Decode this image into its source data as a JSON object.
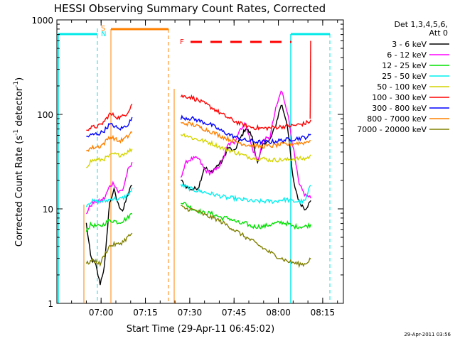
{
  "chart_data": {
    "type": "line",
    "title": "HESSI Observing Summary Count Rates, Corrected",
    "xlabel": "Start Time (29-Apr-11 06:45:02)",
    "ylabel": "Corrected Count Rate (s⁻¹ detector⁻¹)",
    "ylabel_main": "Corrected Count Rate (s",
    "ylabel_mid": " detector",
    "ylabel_end": ")",
    "ylabel_exp": "-1",
    "y_scale": "log",
    "ylim": [
      1,
      1000
    ],
    "xlim": [
      "06:45:02",
      "08:22:00"
    ],
    "x_ticks": [
      "07:00",
      "07:15",
      "07:30",
      "07:45",
      "08:00",
      "08:15"
    ],
    "y_ticks": [
      "1",
      "10",
      "100",
      "1000"
    ],
    "legend_header": [
      "Det 1,3,4,5,6,",
      "Att 0"
    ],
    "legend_position": "right",
    "timestamp": "29-Apr-2011 03:56",
    "markers": {
      "s_label": "S",
      "n_label": "N",
      "f_label": "F"
    },
    "segments": [
      {
        "start": "06:55:00",
        "end": "07:10:30"
      },
      {
        "start": "07:27:00",
        "end": "08:11:00"
      }
    ],
    "series": [
      {
        "name": "3 - 6 keV",
        "color": "#000000",
        "values": [
          [
            7.0,
            3.0,
            2.6,
            1.6,
            2.5,
            11,
            16,
            11,
            9.5,
            14,
            18
          ],
          [
            20,
            17,
            16,
            17,
            28,
            24,
            28,
            32,
            45,
            40,
            55,
            72,
            60,
            30,
            50,
            52,
            75,
            130,
            80,
            20,
            12,
            10,
            12
          ]
        ]
      },
      {
        "name": "6 - 12 keV",
        "color": "#ff00ff",
        "values": [
          [
            9.0,
            11,
            12,
            12,
            13,
            17,
            19,
            15,
            16,
            25,
            30
          ],
          [
            22,
            32,
            34,
            34,
            26,
            24,
            26,
            32,
            48,
            50,
            70,
            80,
            45,
            32,
            55,
            55,
            110,
            180,
            110,
            45,
            18,
            14,
            13
          ]
        ]
      },
      {
        "name": "12 - 25 keV",
        "color": "#00e000",
        "values": [
          [
            6.0,
            6.8,
            6.6,
            6.5,
            7.0,
            7.5,
            7.5,
            7.2,
            7.5,
            8.0,
            9.0
          ],
          [
            12,
            11,
            10,
            9.5,
            9.0,
            9.0,
            8.5,
            8.0,
            8.0,
            7.5,
            7.0,
            7.0,
            6.5,
            6.5,
            6.5,
            6.8,
            7.0,
            7.2,
            7.0,
            6.5,
            6.5,
            6.5,
            6.8
          ]
        ]
      },
      {
        "name": "25 - 50 keV",
        "color": "#00f0f0",
        "values": [
          [
            11,
            12,
            12,
            12,
            12,
            12.5,
            13,
            12.5,
            13,
            14,
            16
          ],
          [
            18,
            17,
            16,
            15.5,
            15,
            14.5,
            14,
            13.5,
            13,
            13,
            12.5,
            12.5,
            12,
            12,
            12,
            12,
            12,
            12.5,
            12.5,
            12,
            12,
            12,
            18
          ]
        ]
      },
      {
        "name": "50 - 100 keV",
        "color": "#d4d400",
        "values": [
          [
            28,
            32,
            33,
            33,
            34,
            36,
            38,
            37,
            38,
            40,
            43
          ],
          [
            62,
            60,
            56,
            54,
            52,
            50,
            47,
            44,
            42,
            40,
            38,
            36,
            35,
            34,
            34,
            33,
            33,
            33,
            33,
            34,
            34,
            34,
            36
          ]
        ]
      },
      {
        "name": "100 - 300 keV",
        "color": "#ff0000",
        "values": [
          [
            70,
            72,
            74,
            76,
            85,
            100,
            98,
            92,
            95,
            105,
            130
          ],
          [
            155,
            155,
            150,
            140,
            130,
            120,
            110,
            100,
            92,
            85,
            80,
            76,
            73,
            72,
            71,
            72,
            73,
            74,
            75,
            76,
            78,
            80,
            85
          ]
        ]
      },
      {
        "name": "300 - 800 keV",
        "color": "#0000ff",
        "values": [
          [
            58,
            60,
            62,
            63,
            68,
            78,
            76,
            70,
            72,
            78,
            90
          ],
          [
            92,
            92,
            90,
            86,
            82,
            78,
            72,
            66,
            62,
            58,
            55,
            53,
            52,
            51,
            51,
            51,
            52,
            53,
            54,
            55,
            56,
            57,
            60
          ]
        ]
      },
      {
        "name": "800 - 7000 keV",
        "color": "#ff8000",
        "values": [
          [
            42,
            44,
            45,
            46,
            50,
            58,
            56,
            52,
            54,
            58,
            66
          ],
          [
            80,
            80,
            78,
            74,
            70,
            66,
            62,
            58,
            55,
            52,
            50,
            48,
            47,
            46,
            46,
            46,
            47,
            48,
            48,
            49,
            50,
            50,
            54
          ]
        ]
      },
      {
        "name": "7000 - 20000 keV",
        "color": "#808000",
        "values": [
          [
            2.6,
            2.8,
            2.8,
            2.6,
            3.3,
            4.0,
            4.2,
            4.2,
            4.5,
            5.0,
            5.5
          ],
          [
            10.5,
            10,
            9.8,
            9.3,
            8.6,
            8.2,
            7.8,
            7.2,
            6.6,
            6.0,
            5.5,
            5.0,
            4.6,
            4.2,
            3.8,
            3.5,
            3.2,
            3.0,
            2.8,
            2.7,
            2.6,
            2.6,
            3.0
          ]
        ]
      }
    ]
  }
}
